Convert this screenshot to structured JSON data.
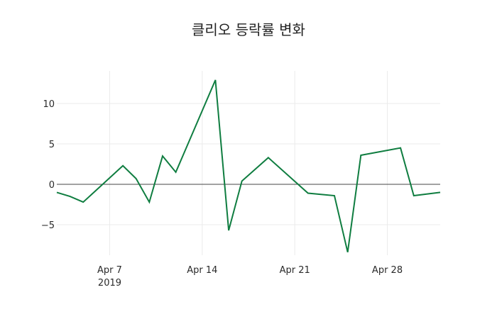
{
  "chart_data": {
    "type": "line",
    "title": "클리오 등락률 변화",
    "xlabel": "",
    "ylabel": "",
    "x": [
      "2019-04-03",
      "2019-04-04",
      "2019-04-05",
      "2019-04-08",
      "2019-04-09",
      "2019-04-10",
      "2019-04-11",
      "2019-04-12",
      "2019-04-15",
      "2019-04-16",
      "2019-04-17",
      "2019-04-19",
      "2019-04-22",
      "2019-04-24",
      "2019-04-25",
      "2019-04-26",
      "2019-04-29",
      "2019-04-30",
      "2019-05-02"
    ],
    "series": [
      {
        "name": "등락률",
        "color": "#0f7d40",
        "values": [
          -1.0,
          -1.5,
          -2.2,
          2.3,
          0.7,
          -2.2,
          3.5,
          1.5,
          12.9,
          -5.7,
          0.4,
          3.3,
          -1.1,
          -1.4,
          -8.4,
          3.6,
          4.5,
          -1.4,
          -1.0
        ]
      }
    ],
    "x_ticks": [
      {
        "date": "2019-04-07",
        "label": "Apr 7",
        "sublabel": "2019"
      },
      {
        "date": "2019-04-14",
        "label": "Apr 14",
        "sublabel": ""
      },
      {
        "date": "2019-04-21",
        "label": "Apr 21",
        "sublabel": ""
      },
      {
        "date": "2019-04-28",
        "label": "Apr 28",
        "sublabel": ""
      }
    ],
    "y_ticks": [
      10,
      5,
      0,
      -5
    ],
    "y_tick_labels": [
      "10",
      "5",
      "0",
      "−5"
    ],
    "xlim": [
      "2019-04-03",
      "2019-05-02"
    ],
    "ylim": [
      -9.0,
      14.1
    ],
    "grid": true,
    "legend": false
  }
}
